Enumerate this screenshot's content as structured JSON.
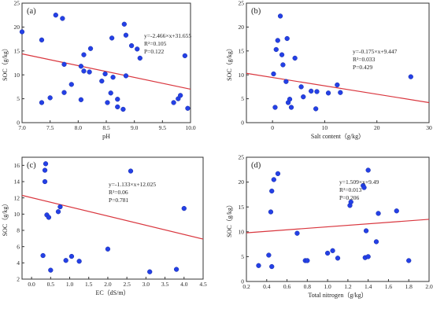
{
  "figure": {
    "colors": {
      "point": "#2440e6",
      "trend_line": "#d9363e",
      "axes": "#333333"
    }
  },
  "chart_data": [
    {
      "id": "a",
      "type": "scatter",
      "panel_label": "(a)",
      "xlabel": "pH",
      "ylabel": "SOC（g/kg）",
      "xlim": [
        7.0,
        10.0
      ],
      "ylim": [
        0,
        25
      ],
      "xticks": [
        "7.0",
        "7.5",
        "8.0",
        "8.5",
        "9.0",
        "9.5",
        "10.0"
      ],
      "yticks": [
        "0",
        "5",
        "10",
        "15",
        "20",
        "25"
      ],
      "annotations": [
        "y=-2.466×x+31.655",
        "R²=0.105",
        "P=0.122"
      ],
      "trend": {
        "slope": -2.466,
        "intercept": 31.655
      },
      "grid": false,
      "points": [
        {
          "x": 7.0,
          "y": 19.0
        },
        {
          "x": 7.35,
          "y": 17.3
        },
        {
          "x": 7.35,
          "y": 4.2
        },
        {
          "x": 7.5,
          "y": 5.2
        },
        {
          "x": 7.6,
          "y": 22.5
        },
        {
          "x": 7.72,
          "y": 21.8
        },
        {
          "x": 7.75,
          "y": 12.2
        },
        {
          "x": 7.75,
          "y": 6.3
        },
        {
          "x": 7.88,
          "y": 8.0
        },
        {
          "x": 8.05,
          "y": 11.8
        },
        {
          "x": 8.05,
          "y": 4.8
        },
        {
          "x": 8.1,
          "y": 14.2
        },
        {
          "x": 8.1,
          "y": 10.8
        },
        {
          "x": 8.2,
          "y": 10.6
        },
        {
          "x": 8.22,
          "y": 15.5
        },
        {
          "x": 8.42,
          "y": 8.7
        },
        {
          "x": 8.48,
          "y": 10.2
        },
        {
          "x": 8.52,
          "y": 4.2
        },
        {
          "x": 8.58,
          "y": 6.2
        },
        {
          "x": 8.6,
          "y": 17.7
        },
        {
          "x": 8.62,
          "y": 9.5
        },
        {
          "x": 8.7,
          "y": 4.9
        },
        {
          "x": 8.7,
          "y": 3.3
        },
        {
          "x": 8.82,
          "y": 20.6
        },
        {
          "x": 8.8,
          "y": 2.8
        },
        {
          "x": 8.85,
          "y": 18.3
        },
        {
          "x": 8.85,
          "y": 9.8
        },
        {
          "x": 8.95,
          "y": 16.1
        },
        {
          "x": 9.05,
          "y": 15.4
        },
        {
          "x": 9.1,
          "y": 13.5
        },
        {
          "x": 9.7,
          "y": 4.2
        },
        {
          "x": 9.78,
          "y": 5.0
        },
        {
          "x": 9.82,
          "y": 5.7
        },
        {
          "x": 9.9,
          "y": 14.0
        },
        {
          "x": 9.95,
          "y": 3.0
        }
      ]
    },
    {
      "id": "b",
      "type": "scatter",
      "panel_label": "(b)",
      "xlabel": "Salt content（g/kg）",
      "ylabel": "SOC（g/kg）",
      "xlim": [
        -5,
        30
      ],
      "ylim": [
        0,
        25
      ],
      "xticks": [
        "0",
        "10",
        "20",
        "30"
      ],
      "yticks": [
        "0",
        "5",
        "10",
        "15",
        "20",
        "25"
      ],
      "annotations": [
        "y=-0.175×x+9.447",
        "R²=0.033",
        "P=0.429"
      ],
      "trend": {
        "slope": -0.175,
        "intercept": 9.447
      },
      "grid": false,
      "points": [
        {
          "x": 0.2,
          "y": 10.2
        },
        {
          "x": 0.5,
          "y": 3.2
        },
        {
          "x": 0.7,
          "y": 15.3
        },
        {
          "x": 1.0,
          "y": 17.2
        },
        {
          "x": 1.5,
          "y": 22.3
        },
        {
          "x": 1.8,
          "y": 14.2
        },
        {
          "x": 2.0,
          "y": 12.1
        },
        {
          "x": 2.6,
          "y": 8.6
        },
        {
          "x": 2.8,
          "y": 17.6
        },
        {
          "x": 3.0,
          "y": 4.2
        },
        {
          "x": 3.3,
          "y": 4.9
        },
        {
          "x": 3.6,
          "y": 3.2
        },
        {
          "x": 4.3,
          "y": 13.5
        },
        {
          "x": 5.5,
          "y": 7.5
        },
        {
          "x": 5.9,
          "y": 5.4
        },
        {
          "x": 7.4,
          "y": 6.6
        },
        {
          "x": 8.3,
          "y": 2.9
        },
        {
          "x": 8.5,
          "y": 6.5
        },
        {
          "x": 10.7,
          "y": 6.2
        },
        {
          "x": 12.4,
          "y": 7.9
        },
        {
          "x": 13.0,
          "y": 6.3
        },
        {
          "x": 26.5,
          "y": 9.6
        }
      ]
    },
    {
      "id": "c",
      "type": "scatter",
      "panel_label": "(c)",
      "xlabel": "EC（dS/m）",
      "ylabel": "SOC（g/kg）",
      "xlim": [
        -0.25,
        4.5
      ],
      "ylim": [
        2,
        17
      ],
      "xticks": [
        "0.0",
        "0.5",
        "1.0",
        "1.5",
        "2.0",
        "2.5",
        "3.0",
        "3.5",
        "4.0",
        "4.5"
      ],
      "yticks": [
        "2",
        "4",
        "6",
        "8",
        "10",
        "12",
        "14",
        "16"
      ],
      "annotations": [
        "y=-1.133×x+12.025",
        "R²=0.06",
        "P=0.781"
      ],
      "trend": {
        "slope": -1.133,
        "intercept": 12.025
      },
      "grid": false,
      "points": [
        {
          "x": 0.3,
          "y": 4.9
        },
        {
          "x": 0.35,
          "y": 14.0
        },
        {
          "x": 0.35,
          "y": 15.4
        },
        {
          "x": 0.37,
          "y": 16.2
        },
        {
          "x": 0.4,
          "y": 9.9
        },
        {
          "x": 0.45,
          "y": 9.6
        },
        {
          "x": 0.5,
          "y": 3.1
        },
        {
          "x": 0.7,
          "y": 10.3
        },
        {
          "x": 0.75,
          "y": 10.9
        },
        {
          "x": 0.9,
          "y": 4.3
        },
        {
          "x": 1.05,
          "y": 4.8
        },
        {
          "x": 1.25,
          "y": 4.2
        },
        {
          "x": 2.0,
          "y": 5.7
        },
        {
          "x": 2.6,
          "y": 15.3
        },
        {
          "x": 3.1,
          "y": 2.9
        },
        {
          "x": 3.8,
          "y": 3.2
        },
        {
          "x": 4.0,
          "y": 10.7
        }
      ]
    },
    {
      "id": "d",
      "type": "scatter",
      "panel_label": "(d)",
      "xlabel": "Total nitrogen（g/kg）",
      "ylabel": "SOC（g/kg）",
      "xlim": [
        0.2,
        2.0
      ],
      "ylim": [
        0,
        25
      ],
      "xticks": [
        "0.2",
        "0.4",
        "0.6",
        "0.8",
        "1.0",
        "1.2",
        "1.4",
        "1.6",
        "1.8",
        "2.0"
      ],
      "yticks": [
        "0",
        "5",
        "10",
        "15",
        "20",
        "25"
      ],
      "annotations": [
        "y=1.509×x+9.49",
        "R²=0.013",
        "P=0.206"
      ],
      "trend": {
        "slope": 1.509,
        "intercept": 9.49
      },
      "grid": false,
      "points": [
        {
          "x": 0.32,
          "y": 3.2
        },
        {
          "x": 0.42,
          "y": 5.3
        },
        {
          "x": 0.44,
          "y": 14.0
        },
        {
          "x": 0.45,
          "y": 3.0
        },
        {
          "x": 0.45,
          "y": 18.2
        },
        {
          "x": 0.47,
          "y": 20.5
        },
        {
          "x": 0.51,
          "y": 21.7
        },
        {
          "x": 0.7,
          "y": 9.7
        },
        {
          "x": 0.78,
          "y": 4.2
        },
        {
          "x": 0.8,
          "y": 4.2
        },
        {
          "x": 1.0,
          "y": 5.7
        },
        {
          "x": 1.05,
          "y": 6.2
        },
        {
          "x": 1.1,
          "y": 4.7
        },
        {
          "x": 1.22,
          "y": 15.3
        },
        {
          "x": 1.23,
          "y": 16.0
        },
        {
          "x": 1.35,
          "y": 19.3
        },
        {
          "x": 1.36,
          "y": 18.9
        },
        {
          "x": 1.37,
          "y": 4.8
        },
        {
          "x": 1.38,
          "y": 10.2
        },
        {
          "x": 1.4,
          "y": 22.4
        },
        {
          "x": 1.4,
          "y": 5.0
        },
        {
          "x": 1.48,
          "y": 8.0
        },
        {
          "x": 1.5,
          "y": 13.7
        },
        {
          "x": 1.68,
          "y": 14.2
        },
        {
          "x": 1.8,
          "y": 4.2
        }
      ]
    }
  ]
}
